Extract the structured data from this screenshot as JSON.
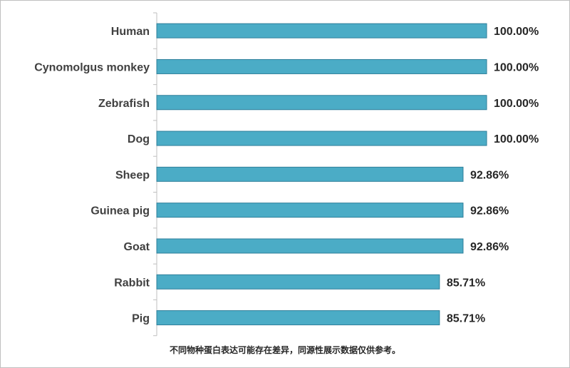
{
  "chart_data": {
    "type": "bar",
    "orientation": "horizontal",
    "categories": [
      "Human",
      "Cynomolgus monkey",
      "Zebrafish",
      "Dog",
      "Sheep",
      "Guinea pig",
      "Goat",
      "Rabbit",
      "Pig"
    ],
    "values": [
      100.0,
      100.0,
      100.0,
      100.0,
      92.86,
      92.86,
      92.86,
      85.71,
      85.71
    ],
    "value_labels": [
      "100.00%",
      "100.00%",
      "100.00%",
      "100.00%",
      "92.86%",
      "92.86%",
      "92.86%",
      "85.71%",
      "85.71%"
    ],
    "xlim": [
      0,
      100
    ],
    "title": "",
    "xlabel": "",
    "ylabel": "",
    "grid": false,
    "legend": "none",
    "colors": {
      "bar_fill": "#4bacc6",
      "bar_edge": "#2f7f9a",
      "axis": "#bfbfbf"
    }
  },
  "footnote": "不同物种蛋白表达可能存在差异，同源性展示数据仅供参考。"
}
